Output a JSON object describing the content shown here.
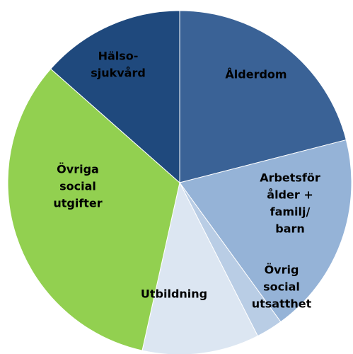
{
  "chart_data": {
    "type": "pie",
    "categories": [
      [
        "Ålderdom"
      ],
      [
        "Arbetsför",
        "ålder +",
        "familj/",
        "barn"
      ],
      [
        "Övrig",
        "social",
        "utsatthet"
      ],
      [
        "Utbildning"
      ],
      [
        "Övriga",
        "social",
        "utgifter"
      ],
      [
        "Hälso-",
        "sjukvård"
      ]
    ],
    "values": [
      21,
      19,
      2.5,
      11,
      33,
      13.5
    ],
    "colors": [
      "#3a6296",
      "#95b3d7",
      "#b9cde5",
      "#dce6f2",
      "#92d050",
      "#1f497d"
    ]
  }
}
